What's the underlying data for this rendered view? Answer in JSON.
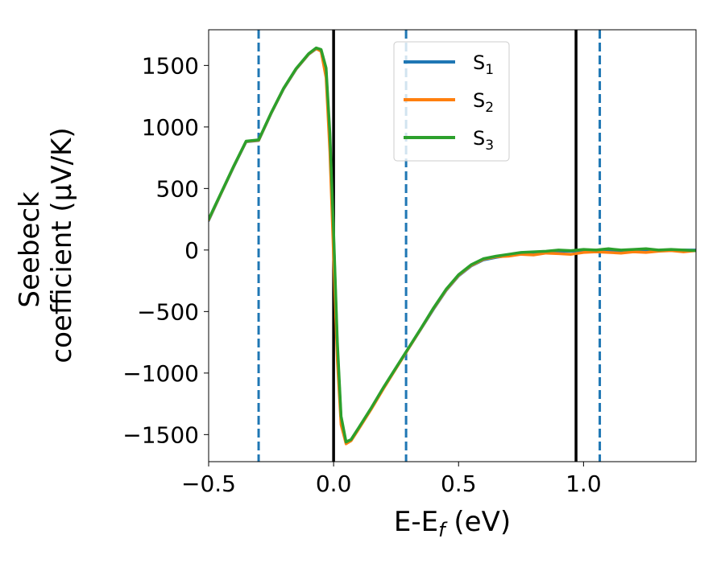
{
  "chart_data": {
    "type": "line",
    "title": "",
    "xlabel": "E-E_f (eV)",
    "ylabel": [
      "Seebeck",
      "coefficient  (μV/K)"
    ],
    "xlim": [
      -0.5,
      1.45
    ],
    "ylim": [
      -1720,
      1790
    ],
    "x_ticks": [
      -0.5,
      0.0,
      0.5,
      1.0
    ],
    "x_tick_labels": [
      "−0.5",
      "0.0",
      "0.5",
      "1.0"
    ],
    "y_ticks": [
      1500,
      1000,
      500,
      0,
      -500,
      -1000,
      -1500
    ],
    "y_tick_labels": [
      "1500",
      "1000",
      "500",
      "0",
      "−500",
      "−1000",
      "−1500"
    ],
    "grid": false,
    "legend_position": "upper-center",
    "series": [
      {
        "name": "S1",
        "color": "#1f77b4",
        "points": [
          [
            -0.5,
            240
          ],
          [
            -0.45,
            460
          ],
          [
            -0.4,
            675
          ],
          [
            -0.35,
            880
          ],
          [
            -0.3,
            890
          ],
          [
            -0.25,
            1110
          ],
          [
            -0.2,
            1310
          ],
          [
            -0.15,
            1470
          ],
          [
            -0.1,
            1590
          ],
          [
            -0.07,
            1635
          ],
          [
            -0.05,
            1620
          ],
          [
            -0.03,
            1450
          ],
          [
            -0.015,
            900
          ],
          [
            0,
            100
          ],
          [
            0.015,
            -800
          ],
          [
            0.03,
            -1380
          ],
          [
            0.05,
            -1565
          ],
          [
            0.07,
            -1545
          ],
          [
            0.1,
            -1450
          ],
          [
            0.15,
            -1290
          ],
          [
            0.2,
            -1120
          ],
          [
            0.25,
            -960
          ],
          [
            0.3,
            -800
          ],
          [
            0.35,
            -640
          ],
          [
            0.4,
            -480
          ],
          [
            0.45,
            -330
          ],
          [
            0.5,
            -210
          ],
          [
            0.55,
            -130
          ],
          [
            0.6,
            -80
          ],
          [
            0.65,
            -60
          ],
          [
            0.7,
            -45
          ],
          [
            0.75,
            -30
          ],
          [
            0.8,
            -25
          ],
          [
            0.85,
            -20
          ],
          [
            0.9,
            -10
          ],
          [
            0.95,
            -10
          ],
          [
            1.0,
            -5
          ],
          [
            1.05,
            0
          ],
          [
            1.1,
            0
          ],
          [
            1.15,
            -5
          ],
          [
            1.2,
            0
          ],
          [
            1.25,
            0
          ],
          [
            1.3,
            -5
          ],
          [
            1.35,
            0
          ],
          [
            1.4,
            0
          ],
          [
            1.45,
            0
          ]
        ]
      },
      {
        "name": "S2",
        "color": "#ff7f0e",
        "points": [
          [
            -0.5,
            245
          ],
          [
            -0.45,
            462
          ],
          [
            -0.4,
            678
          ],
          [
            -0.35,
            882
          ],
          [
            -0.3,
            892
          ],
          [
            -0.25,
            1112
          ],
          [
            -0.2,
            1312
          ],
          [
            -0.15,
            1472
          ],
          [
            -0.1,
            1592
          ],
          [
            -0.07,
            1638
          ],
          [
            -0.05,
            1615
          ],
          [
            -0.03,
            1400
          ],
          [
            -0.015,
            800
          ],
          [
            0,
            -50
          ],
          [
            0.015,
            -900
          ],
          [
            0.03,
            -1420
          ],
          [
            0.05,
            -1575
          ],
          [
            0.07,
            -1550
          ],
          [
            0.1,
            -1455
          ],
          [
            0.15,
            -1295
          ],
          [
            0.2,
            -1125
          ],
          [
            0.25,
            -962
          ],
          [
            0.3,
            -800
          ],
          [
            0.35,
            -638
          ],
          [
            0.4,
            -475
          ],
          [
            0.45,
            -325
          ],
          [
            0.5,
            -205
          ],
          [
            0.55,
            -125
          ],
          [
            0.6,
            -75
          ],
          [
            0.65,
            -55
          ],
          [
            0.7,
            -50
          ],
          [
            0.75,
            -35
          ],
          [
            0.8,
            -40
          ],
          [
            0.85,
            -25
          ],
          [
            0.9,
            -30
          ],
          [
            0.95,
            -35
          ],
          [
            1.0,
            -20
          ],
          [
            1.05,
            -15
          ],
          [
            1.1,
            -20
          ],
          [
            1.15,
            -25
          ],
          [
            1.2,
            -15
          ],
          [
            1.25,
            -20
          ],
          [
            1.3,
            -10
          ],
          [
            1.35,
            -5
          ],
          [
            1.4,
            -15
          ],
          [
            1.45,
            -5
          ]
        ]
      },
      {
        "name": "S3",
        "color": "#2ca02c",
        "points": [
          [
            -0.5,
            250
          ],
          [
            -0.45,
            465
          ],
          [
            -0.4,
            680
          ],
          [
            -0.35,
            885
          ],
          [
            -0.3,
            895
          ],
          [
            -0.25,
            1115
          ],
          [
            -0.2,
            1315
          ],
          [
            -0.15,
            1475
          ],
          [
            -0.1,
            1595
          ],
          [
            -0.07,
            1642
          ],
          [
            -0.05,
            1630
          ],
          [
            -0.03,
            1480
          ],
          [
            -0.015,
            950
          ],
          [
            0,
            150
          ],
          [
            0.015,
            -750
          ],
          [
            0.03,
            -1350
          ],
          [
            0.05,
            -1560
          ],
          [
            0.07,
            -1540
          ],
          [
            0.1,
            -1445
          ],
          [
            0.15,
            -1285
          ],
          [
            0.2,
            -1115
          ],
          [
            0.25,
            -955
          ],
          [
            0.3,
            -795
          ],
          [
            0.35,
            -635
          ],
          [
            0.4,
            -470
          ],
          [
            0.45,
            -320
          ],
          [
            0.5,
            -200
          ],
          [
            0.55,
            -120
          ],
          [
            0.6,
            -70
          ],
          [
            0.65,
            -50
          ],
          [
            0.7,
            -35
          ],
          [
            0.75,
            -20
          ],
          [
            0.8,
            -15
          ],
          [
            0.85,
            -10
          ],
          [
            0.9,
            0
          ],
          [
            0.95,
            -5
          ],
          [
            1.0,
            5
          ],
          [
            1.05,
            0
          ],
          [
            1.1,
            10
          ],
          [
            1.15,
            0
          ],
          [
            1.2,
            5
          ],
          [
            1.25,
            10
          ],
          [
            1.3,
            0
          ],
          [
            1.35,
            5
          ],
          [
            1.4,
            0
          ],
          [
            1.45,
            -5
          ]
        ]
      }
    ],
    "vertical_lines": [
      {
        "x": -0.3,
        "style": "dashed",
        "color": "#1f77b4"
      },
      {
        "x": 0.0,
        "style": "solid",
        "color": "#000000"
      },
      {
        "x": 0.29,
        "style": "dashed",
        "color": "#1f77b4"
      },
      {
        "x": 0.97,
        "style": "solid",
        "color": "#000000"
      },
      {
        "x": 1.065,
        "style": "dashed",
        "color": "#1f77b4"
      }
    ]
  }
}
